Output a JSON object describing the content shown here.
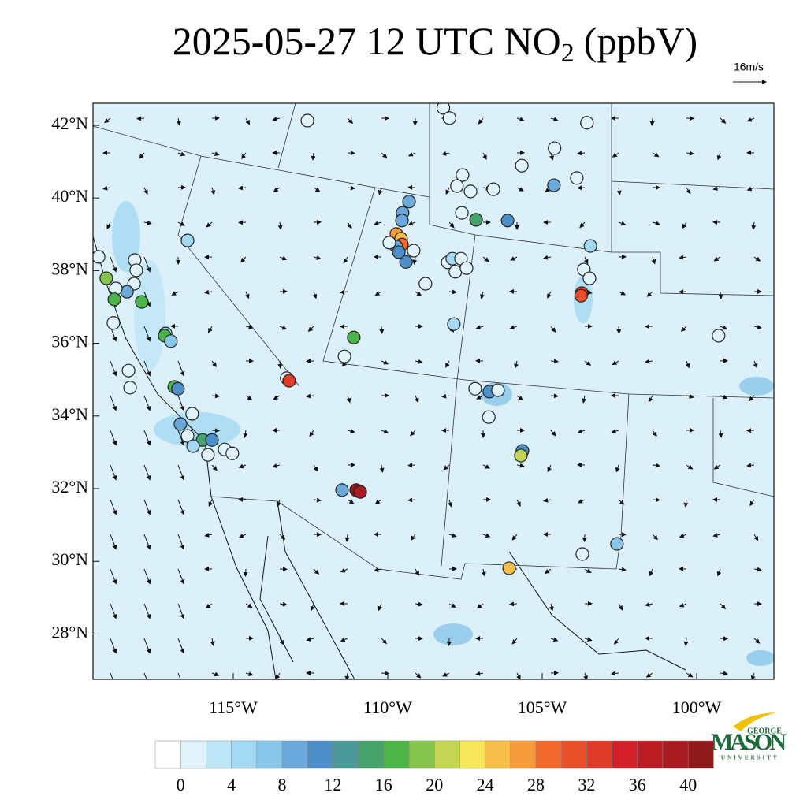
{
  "title": {
    "main": "2025-05-27 12 UTC NO",
    "subscript": "2",
    "unit": "(ppbV)"
  },
  "wind_reference": "16m/s",
  "lat_ticks": [
    {
      "value": 42,
      "label": "42°N"
    },
    {
      "value": 40,
      "label": "40°N"
    },
    {
      "value": 38,
      "label": "38°N"
    },
    {
      "value": 36,
      "label": "36°N"
    },
    {
      "value": 34,
      "label": "34°N"
    },
    {
      "value": 32,
      "label": "32°N"
    },
    {
      "value": 30,
      "label": "30°N"
    },
    {
      "value": 28,
      "label": "28°N"
    }
  ],
  "lon_ticks": [
    {
      "value": -115,
      "label": "115°W"
    },
    {
      "value": -110,
      "label": "110°W"
    },
    {
      "value": -105,
      "label": "105°W"
    },
    {
      "value": -100,
      "label": "100°W"
    }
  ],
  "colorbar": {
    "colors": [
      "#ffffff",
      "#e0f3fb",
      "#bfe6f7",
      "#a3d9f3",
      "#88c6ea",
      "#6aa9da",
      "#4c8fc9",
      "#4a9a9a",
      "#46a36c",
      "#4cb548",
      "#84c44c",
      "#c2d653",
      "#f6e85a",
      "#f7bf49",
      "#f59b3c",
      "#f16a2c",
      "#e8502a",
      "#e03b26",
      "#d21f29",
      "#bc1c24",
      "#a81b20",
      "#8e1a1a"
    ],
    "labels": [
      0,
      4,
      8,
      12,
      16,
      20,
      24,
      28,
      32,
      36,
      40
    ]
  },
  "stations": [
    [
      -112.6,
      42.13,
      1
    ],
    [
      -108.2,
      42.48,
      1
    ],
    [
      -108.0,
      42.2,
      1
    ],
    [
      -103.55,
      42.07,
      1
    ],
    [
      -104.6,
      41.37,
      1
    ],
    [
      -105.66,
      40.89,
      1
    ],
    [
      -107.58,
      40.63,
      1
    ],
    [
      -107.76,
      40.33,
      1
    ],
    [
      -107.32,
      40.18,
      1
    ],
    [
      -106.58,
      40.24,
      1
    ],
    [
      -104.62,
      40.35,
      8
    ],
    [
      -103.88,
      40.55,
      1
    ],
    [
      -109.31,
      39.9,
      8
    ],
    [
      -109.52,
      39.59,
      9
    ],
    [
      -109.54,
      39.38,
      9
    ],
    [
      -107.6,
      39.59,
      1
    ],
    [
      -107.14,
      39.4,
      15
    ],
    [
      -106.12,
      39.38,
      11
    ],
    [
      -109.72,
      39.01,
      26
    ],
    [
      -109.57,
      38.88,
      24
    ],
    [
      -109.54,
      38.72,
      29
    ],
    [
      -109.72,
      38.66,
      9
    ],
    [
      -109.41,
      38.24,
      11
    ],
    [
      -109.64,
      38.51,
      11
    ],
    [
      -109.16,
      38.55,
      1
    ],
    [
      -109.95,
      38.77,
      1
    ],
    [
      -103.44,
      38.68,
      5
    ],
    [
      -116.48,
      38.83,
      5
    ],
    [
      -119.36,
      38.38,
      1
    ],
    [
      -118.19,
      38.29,
      1
    ],
    [
      -118.14,
      38.01,
      1
    ],
    [
      -118.21,
      37.64,
      1
    ],
    [
      -108.06,
      38.23,
      1
    ],
    [
      -107.91,
      38.33,
      5
    ],
    [
      -107.63,
      38.33,
      1
    ],
    [
      -107.81,
      37.97,
      1
    ],
    [
      -107.45,
      38.07,
      1
    ],
    [
      -103.65,
      38.03,
      1
    ],
    [
      -103.47,
      37.79,
      1
    ],
    [
      -103.72,
      37.38,
      32
    ],
    [
      -103.74,
      37.31,
      31
    ],
    [
      -119.11,
      37.79,
      18
    ],
    [
      -118.44,
      37.42,
      8
    ],
    [
      -118.8,
      37.51,
      1
    ],
    [
      -118.85,
      37.21,
      16
    ],
    [
      -117.96,
      37.14,
      16
    ],
    [
      -118.88,
      36.56,
      1
    ],
    [
      -108.78,
      37.64,
      1
    ],
    [
      -107.86,
      36.53,
      5
    ],
    [
      -99.29,
      36.21,
      1
    ],
    [
      -111.1,
      36.16,
      16
    ],
    [
      -111.4,
      35.64,
      1
    ],
    [
      -117.19,
      36.27,
      5
    ],
    [
      -117.22,
      36.21,
      16
    ],
    [
      -117.02,
      36.06,
      7
    ],
    [
      -118.39,
      35.25,
      1
    ],
    [
      -118.34,
      34.78,
      1
    ],
    [
      -113.27,
      35.04,
      1
    ],
    [
      -113.19,
      34.97,
      32
    ],
    [
      -107.17,
      34.75,
      1
    ],
    [
      -106.71,
      34.67,
      11
    ],
    [
      -106.43,
      34.71,
      1
    ],
    [
      -106.73,
      33.97,
      1
    ],
    [
      -116.91,
      34.8,
      17
    ],
    [
      -116.79,
      34.75,
      10
    ],
    [
      -116.33,
      34.06,
      1
    ],
    [
      -116.71,
      33.78,
      8
    ],
    [
      -116.48,
      33.45,
      1
    ],
    [
      -115.99,
      33.34,
      14
    ],
    [
      -115.69,
      33.34,
      11
    ],
    [
      -116.3,
      33.17,
      5
    ],
    [
      -115.82,
      32.93,
      1
    ],
    [
      -115.28,
      33.08,
      1
    ],
    [
      -115.03,
      32.97,
      1
    ],
    [
      -105.64,
      33.04,
      11
    ],
    [
      -105.69,
      32.91,
      20
    ],
    [
      -111.48,
      31.96,
      9
    ],
    [
      -111.02,
      31.96,
      40
    ],
    [
      -110.89,
      31.91,
      38
    ],
    [
      -103.7,
      30.2,
      1
    ],
    [
      -102.58,
      30.48,
      7
    ],
    [
      -106.07,
      29.81,
      25
    ]
  ],
  "logo": {
    "top": "GEORGE",
    "middle": "MASON",
    "bottom": "UNIVERSITY"
  }
}
